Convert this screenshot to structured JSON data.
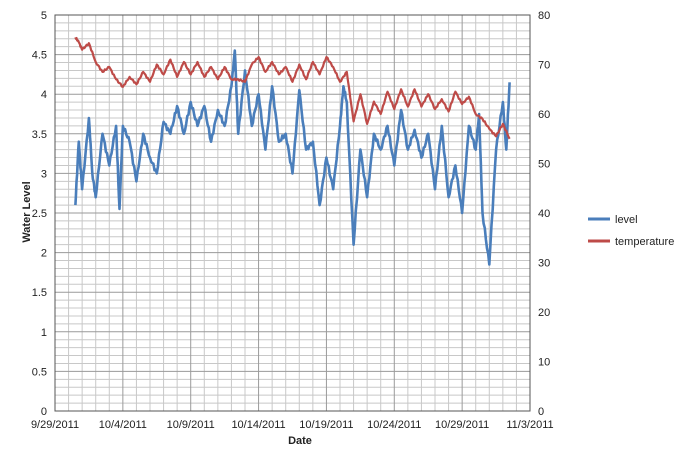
{
  "chart_data": {
    "type": "line",
    "xlabel": "Date",
    "ylabel": "Water Level",
    "y2label": "",
    "xlim": [
      "9/29/2011",
      "11/3/2011"
    ],
    "ylim": [
      0,
      5
    ],
    "y2lim": [
      0,
      80
    ],
    "x_tick_labels": [
      "9/29/2011",
      "10/4/2011",
      "10/9/2011",
      "10/14/2011",
      "10/19/2011",
      "10/24/2011",
      "10/29/2011",
      "11/3/2011"
    ],
    "y_tick_labels": [
      "0",
      "0.5",
      "1",
      "1.5",
      "2",
      "2.5",
      "3",
      "3.5",
      "4",
      "4.5",
      "5"
    ],
    "y2_tick_labels": [
      "0",
      "10",
      "20",
      "30",
      "40",
      "50",
      "60",
      "70",
      "80"
    ],
    "grid": true,
    "legend_position": "right",
    "series": [
      {
        "name": "level",
        "axis": "left",
        "color": "#4a7ebb",
        "x": [
          "9/30/2011 12:00",
          "9/30/2011 18:00",
          "10/1/2011 00:00",
          "10/1/2011 12:00",
          "10/1/2011 18:00",
          "10/2/2011 00:00",
          "10/2/2011 12:00",
          "10/3/2011 00:00",
          "10/3/2011 12:00",
          "10/3/2011 18:00",
          "10/4/2011 00:00",
          "10/4/2011 12:00",
          "10/5/2011 00:00",
          "10/5/2011 12:00",
          "10/6/2011 00:00",
          "10/6/2011 12:00",
          "10/7/2011 00:00",
          "10/7/2011 12:00",
          "10/8/2011 00:00",
          "10/8/2011 12:00",
          "10/9/2011 00:00",
          "10/9/2011 12:00",
          "10/10/2011 00:00",
          "10/10/2011 12:00",
          "10/11/2011 00:00",
          "10/11/2011 12:00",
          "10/12/2011 00:00",
          "10/12/2011 06:00",
          "10/12/2011 12:00",
          "10/13/2011 00:00",
          "10/13/2011 12:00",
          "10/14/2011 00:00",
          "10/14/2011 12:00",
          "10/15/2011 00:00",
          "10/15/2011 12:00",
          "10/16/2011 00:00",
          "10/16/2011 12:00",
          "10/17/2011 00:00",
          "10/17/2011 12:00",
          "10/18/2011 00:00",
          "10/18/2011 12:00",
          "10/19/2011 00:00",
          "10/19/2011 12:00",
          "10/20/2011 00:00",
          "10/20/2011 06:00",
          "10/20/2011 12:00",
          "10/21/2011 00:00",
          "10/21/2011 12:00",
          "10/22/2011 00:00",
          "10/22/2011 12:00",
          "10/23/2011 00:00",
          "10/23/2011 12:00",
          "10/24/2011 00:00",
          "10/24/2011 12:00",
          "10/25/2011 00:00",
          "10/25/2011 12:00",
          "10/26/2011 00:00",
          "10/26/2011 12:00",
          "10/27/2011 00:00",
          "10/27/2011 12:00",
          "10/28/2011 00:00",
          "10/28/2011 12:00",
          "10/29/2011 00:00",
          "10/29/2011 12:00",
          "10/30/2011 00:00",
          "10/30/2011 06:00",
          "10/30/2011 12:00",
          "10/31/2011 00:00",
          "10/31/2011 12:00",
          "11/1/2011 00:00",
          "11/1/2011 06:00",
          "11/1/2011 12:00"
        ],
        "values": [
          2.6,
          3.4,
          2.8,
          3.7,
          3.0,
          2.7,
          3.5,
          3.1,
          3.6,
          2.55,
          3.6,
          3.4,
          2.9,
          3.5,
          3.2,
          3.0,
          3.65,
          3.5,
          3.85,
          3.5,
          3.9,
          3.6,
          3.85,
          3.4,
          3.8,
          3.6,
          4.1,
          4.55,
          3.5,
          4.3,
          3.6,
          4.0,
          3.3,
          4.1,
          3.4,
          3.5,
          3.0,
          4.05,
          3.3,
          3.4,
          2.6,
          3.2,
          2.8,
          3.6,
          4.1,
          3.9,
          2.1,
          3.3,
          2.7,
          3.5,
          3.3,
          3.6,
          3.1,
          3.8,
          3.3,
          3.55,
          3.2,
          3.5,
          2.8,
          3.6,
          2.7,
          3.1,
          2.5,
          3.6,
          3.3,
          3.75,
          2.5,
          1.85,
          3.3,
          3.9,
          3.3,
          4.15
        ]
      },
      {
        "name": "temperature",
        "axis": "right",
        "color": "#be4b48",
        "x": [
          "9/30/2011 12:00",
          "9/30/2011 18:00",
          "10/1/2011 00:00",
          "10/1/2011 12:00",
          "10/2/2011 00:00",
          "10/2/2011 12:00",
          "10/3/2011 00:00",
          "10/3/2011 12:00",
          "10/4/2011 00:00",
          "10/4/2011 12:00",
          "10/5/2011 00:00",
          "10/5/2011 12:00",
          "10/6/2011 00:00",
          "10/6/2011 12:00",
          "10/7/2011 00:00",
          "10/7/2011 12:00",
          "10/8/2011 00:00",
          "10/8/2011 12:00",
          "10/9/2011 00:00",
          "10/9/2011 12:00",
          "10/10/2011 00:00",
          "10/10/2011 12:00",
          "10/11/2011 00:00",
          "10/11/2011 12:00",
          "10/12/2011 00:00",
          "10/12/2011 12:00",
          "10/13/2011 00:00",
          "10/13/2011 12:00",
          "10/14/2011 00:00",
          "10/14/2011 12:00",
          "10/15/2011 00:00",
          "10/15/2011 12:00",
          "10/16/2011 00:00",
          "10/16/2011 12:00",
          "10/17/2011 00:00",
          "10/17/2011 12:00",
          "10/18/2011 00:00",
          "10/18/2011 12:00",
          "10/19/2011 00:00",
          "10/19/2011 12:00",
          "10/20/2011 00:00",
          "10/20/2011 12:00",
          "10/21/2011 00:00",
          "10/21/2011 12:00",
          "10/22/2011 00:00",
          "10/22/2011 12:00",
          "10/23/2011 00:00",
          "10/23/2011 12:00",
          "10/24/2011 00:00",
          "10/24/2011 12:00",
          "10/25/2011 00:00",
          "10/25/2011 12:00",
          "10/26/2011 00:00",
          "10/26/2011 12:00",
          "10/27/2011 00:00",
          "10/27/2011 12:00",
          "10/28/2011 00:00",
          "10/28/2011 12:00",
          "10/29/2011 00:00",
          "10/29/2011 12:00",
          "10/30/2011 00:00",
          "10/30/2011 12:00",
          "10/31/2011 00:00",
          "10/31/2011 12:00",
          "11/1/2011 00:00",
          "11/1/2011 12:00"
        ],
        "values": [
          75.5,
          74.5,
          73.0,
          74.3,
          70.5,
          68.5,
          69.5,
          67.0,
          65.5,
          67.5,
          66.0,
          68.5,
          66.5,
          70.0,
          68.0,
          71.0,
          67.5,
          70.5,
          68.0,
          70.5,
          67.5,
          69.5,
          67.0,
          69.5,
          67.0,
          67.0,
          66.5,
          70.0,
          71.5,
          68.5,
          70.5,
          68.0,
          69.5,
          66.5,
          70.0,
          67.0,
          70.5,
          68.0,
          71.5,
          69.5,
          66.5,
          68.5,
          58.5,
          64.0,
          58.0,
          62.5,
          60.0,
          64.5,
          61.0,
          65.0,
          61.5,
          65.0,
          61.5,
          64.0,
          61.0,
          63.0,
          60.5,
          64.5,
          62.0,
          63.5,
          60.0,
          59.0,
          57.0,
          55.5,
          58.0,
          55.0
        ]
      }
    ]
  }
}
